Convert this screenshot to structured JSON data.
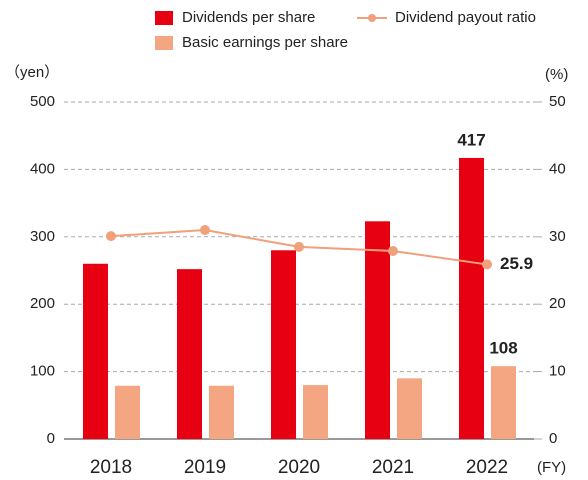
{
  "chart_data": {
    "type": "bar",
    "y_label": "（yen）",
    "y2_label": "(%)",
    "x_label": "(FY)",
    "categories": [
      "2018",
      "2019",
      "2020",
      "2021",
      "2022"
    ],
    "series": [
      {
        "name": "Dividends per share",
        "type": "bar",
        "color": "#e60012",
        "values": [
          260,
          252,
          280,
          323,
          417
        ],
        "label_last": true
      },
      {
        "name": "Basic earnings per share",
        "type": "bar",
        "color": "#f4a582",
        "values": [
          79,
          79,
          80,
          90,
          108
        ],
        "label_last": true
      },
      {
        "name": "Dividend payout ratio",
        "type": "line",
        "axis": "y2",
        "color": "#f0a07a",
        "values": [
          30.1,
          31.0,
          28.5,
          27.9,
          25.9
        ],
        "label_last": true
      }
    ],
    "ylim": [
      0,
      500
    ],
    "yticks": [
      0,
      100,
      200,
      300,
      400,
      500
    ],
    "y2lim": [
      0,
      50
    ],
    "y2ticks": [
      0,
      10,
      20,
      30,
      40,
      50
    ],
    "grid": true
  }
}
